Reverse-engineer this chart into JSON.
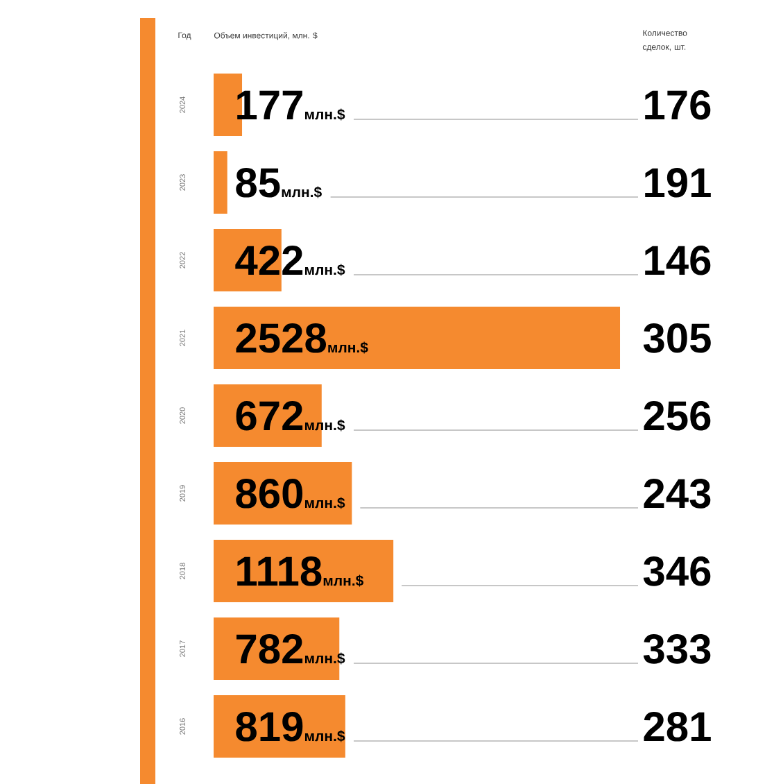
{
  "chart_data": [
    {
      "type": "bar",
      "orientation": "horizontal",
      "xlabel": "Объем инвестиций, млн. $",
      "ylabel": "Год",
      "tick_labels": "y",
      "color": "#f58a2f",
      "categories": [
        "2024",
        "2023",
        "2022",
        "2021",
        "2020",
        "2019",
        "2018",
        "2017",
        "2016"
      ],
      "values": [
        177,
        85,
        422,
        2528,
        672,
        860,
        1118,
        782,
        819
      ],
      "value_labels": [
        "177млн.$",
        "85млн.$",
        "422млн.$",
        "2528млн.$",
        "672млн.$",
        "860млн.$",
        "1118млн.$",
        "782млн.$",
        "819млн.$"
      ]
    },
    {
      "type": "other",
      "title": "Количество сделок, шт.",
      "data_labels": true,
      "values": [
        176,
        191,
        146,
        305,
        256,
        243,
        346,
        333,
        281
      ]
    }
  ]
}
